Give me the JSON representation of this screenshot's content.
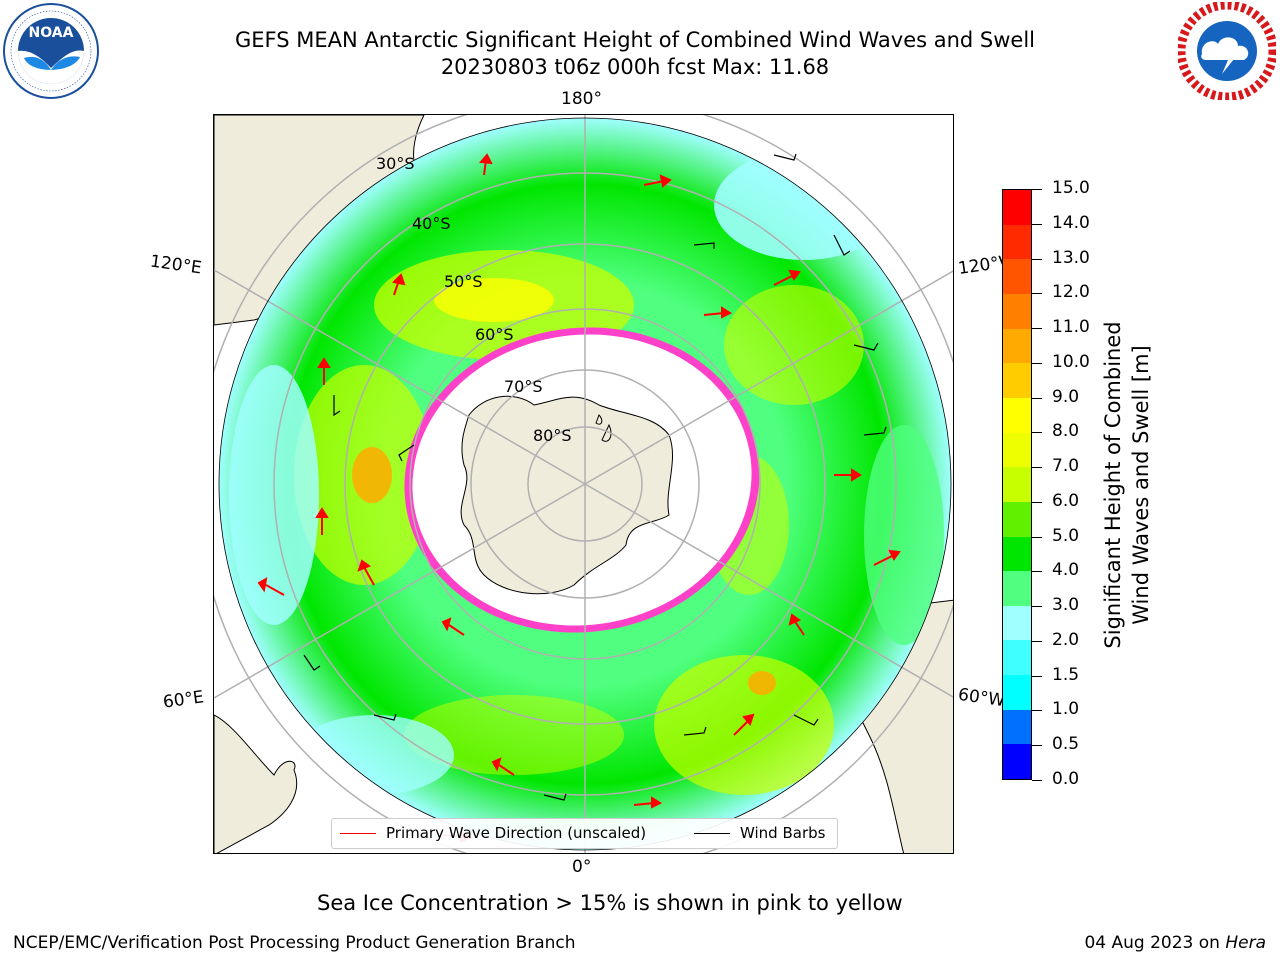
{
  "title": {
    "line1": "GEFS MEAN Antarctic Significant Height of Combined Wind Waves and Swell",
    "line2": "20230803 t06z 000h fcst   Max: 11.68"
  },
  "logos": {
    "left": {
      "name": "NOAA",
      "ring_text": "NATIONAL OCEANIC AND ATMOSPHERIC ADMINISTRATION · U.S. DEPARTMENT OF COMMERCE",
      "colors": {
        "ring": "#ffffff",
        "sky": "#1a4f9c",
        "bird": "#ffffff"
      }
    },
    "right": {
      "name": "NATIONAL WEATHER SERVICE",
      "colors": {
        "ring_text": "#d7191c",
        "disk": "#1565c0"
      }
    }
  },
  "map": {
    "projection": "south polar stereographic",
    "longitude_labels": {
      "top": "180°",
      "bottom": "0°",
      "upper_left": "120°E",
      "upper_right": "120°W",
      "lower_left": "60°E",
      "lower_right": "60°W"
    },
    "latitude_labels": [
      "30°S",
      "40°S",
      "50°S",
      "60°S",
      "70°S",
      "80°S"
    ],
    "colors": {
      "land": "#efecdc",
      "ice": "#ffffff",
      "ocean_default": "#7fff8a",
      "grid": "#b0b0b0",
      "wave_arrow": "#ff0000",
      "wind_barb": "#000000",
      "sea_ice_edge": "#ff40c8"
    }
  },
  "legend": {
    "primary_wave": "Primary Wave Direction (unscaled)",
    "wind_barbs": "Wind Barbs"
  },
  "colorbar": {
    "title_line1": "Significant Height of Combined",
    "title_line2": "Wind Waves and Swell [m]",
    "tick_labels": [
      "0.0",
      "0.5",
      "1.0",
      "1.5",
      "2.0",
      "3.0",
      "4.0",
      "5.0",
      "6.0",
      "7.0",
      "8.0",
      "9.0",
      "10.0",
      "11.0",
      "12.0",
      "13.0",
      "14.0",
      "15.0"
    ],
    "colors": [
      "#0000ff",
      "#0070ff",
      "#00ffff",
      "#40ffff",
      "#a0ffff",
      "#50ff80",
      "#00e600",
      "#60f000",
      "#c8ff00",
      "#eeff00",
      "#ffff00",
      "#ffcc00",
      "#ffaa00",
      "#ff8000",
      "#ff5500",
      "#ff2a00",
      "#ff0000"
    ]
  },
  "caption": "Sea Ice Concentration > 15% is shown in pink to yellow",
  "footer": {
    "left": "NCEP/EMC/Verification Post Processing Product Generation Branch",
    "right_date": "04 Aug 2023 on ",
    "right_host": "Hera"
  }
}
